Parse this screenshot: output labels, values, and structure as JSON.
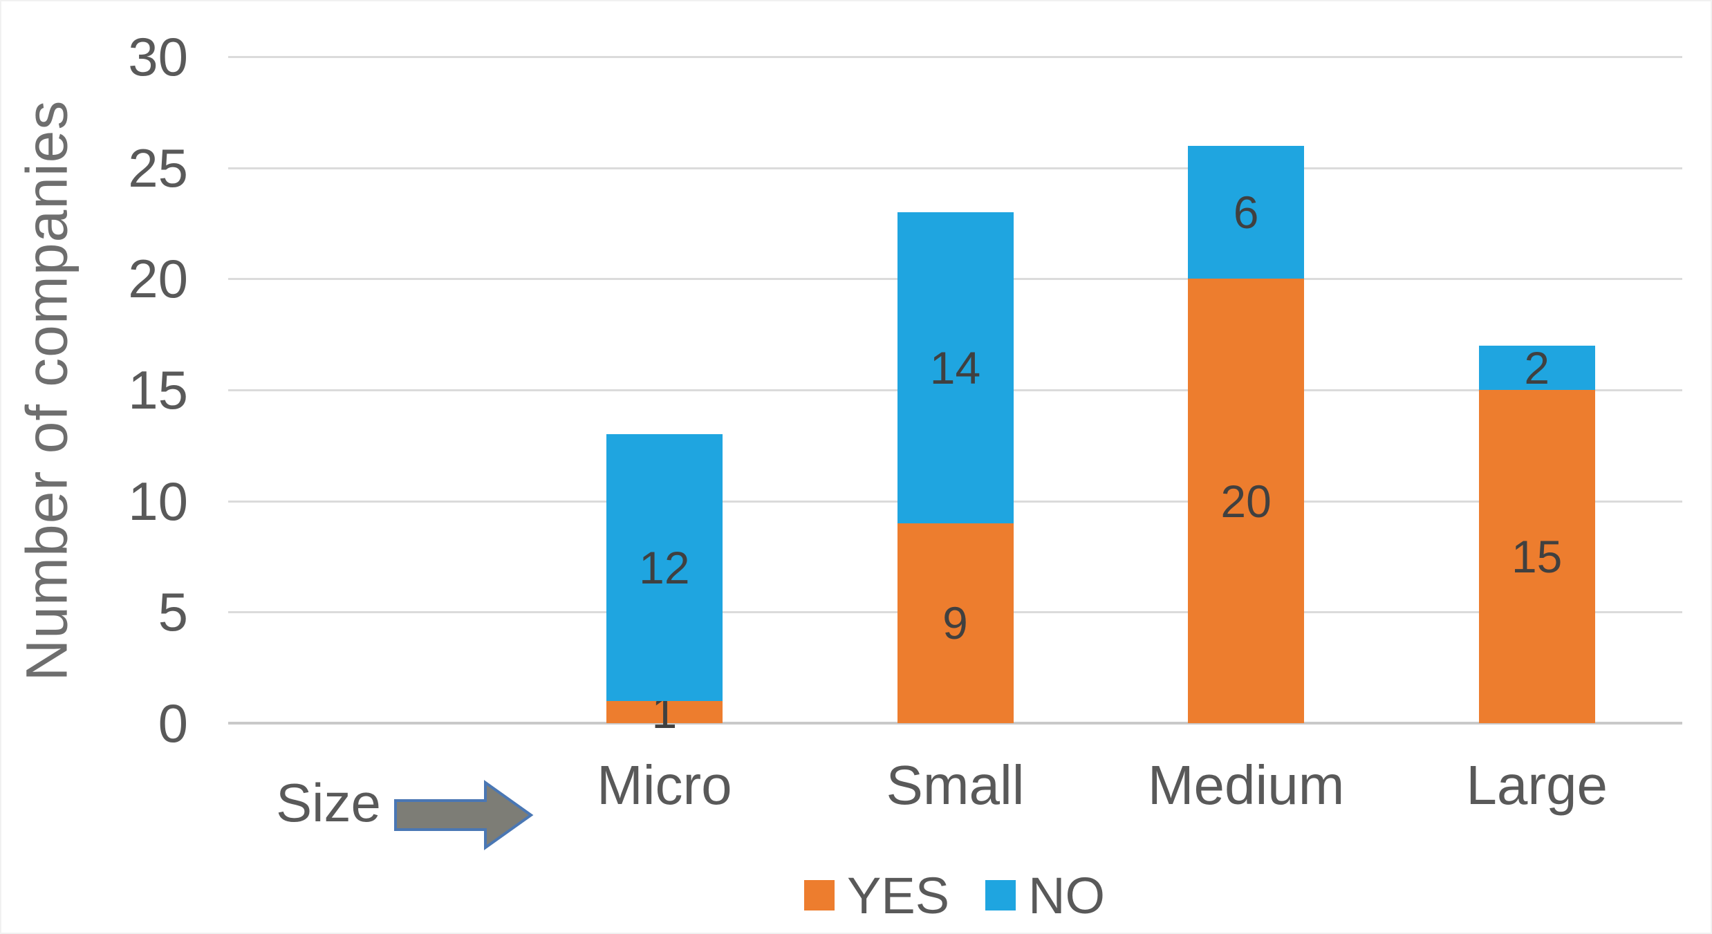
{
  "chart_data": {
    "type": "bar",
    "stacked": true,
    "title": "",
    "ylabel": "Number of companies",
    "xlabel": "",
    "x_annotation": "Size",
    "categories": [
      "Micro",
      "Small",
      "Medium",
      "Large"
    ],
    "series": [
      {
        "name": "YES",
        "color": "#ED7D2E",
        "values": [
          1,
          9,
          20,
          15
        ]
      },
      {
        "name": "NO",
        "color": "#1FA5E0",
        "values": [
          12,
          14,
          6,
          2
        ]
      }
    ],
    "totals": [
      13,
      23,
      26,
      17
    ],
    "ylim": [
      0,
      30
    ],
    "yticks": [
      0,
      5,
      10,
      15,
      20,
      25,
      30
    ],
    "grid": true,
    "data_labels": true,
    "legend_position": "bottom"
  },
  "legend": {
    "items": [
      {
        "label": "YES",
        "color": "#ED7D2E"
      },
      {
        "label": "NO",
        "color": "#1FA5E0"
      }
    ]
  },
  "colors": {
    "yes_bar": "#ED7D2E",
    "no_bar": "#1FA5E0",
    "gridline": "#dbdbdb",
    "axis_baseline": "#c9c9c9",
    "tick_text": "#595959",
    "category_text": "#595959",
    "data_label_text": "#404040",
    "axis_title_text": "#6e6e6e",
    "legend_text": "#595959",
    "arrow_fill": "#7d7d76",
    "arrow_stroke": "#4a77b4"
  }
}
